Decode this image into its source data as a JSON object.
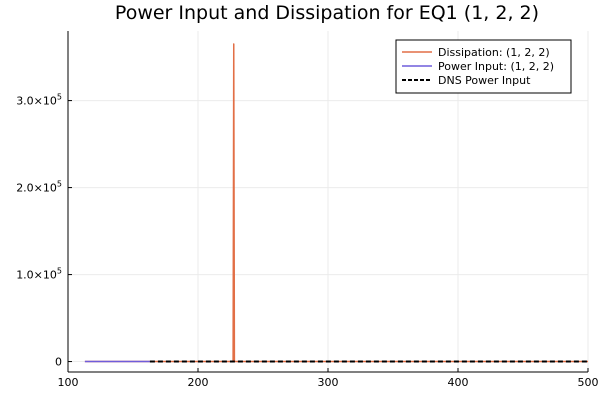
{
  "chart_data": {
    "type": "line",
    "title": "Power Input and Dissipation for EQ1 (1, 2, 2)",
    "xlabel": "",
    "ylabel": "",
    "xlim": [
      100,
      500
    ],
    "ylim": [
      -12000,
      380000
    ],
    "grid": true,
    "legend_position": "top-right",
    "x_ticks": [
      {
        "value": 100,
        "label": "100"
      },
      {
        "value": 200,
        "label": "200"
      },
      {
        "value": 300,
        "label": "300"
      },
      {
        "value": 400,
        "label": "400"
      },
      {
        "value": 500,
        "label": "500"
      }
    ],
    "y_ticks": [
      {
        "value": 0,
        "mantissa": "0",
        "exp": ""
      },
      {
        "value": 100000,
        "mantissa": "1.0×10",
        "exp": "5"
      },
      {
        "value": 200000,
        "mantissa": "2.0×10",
        "exp": "5"
      },
      {
        "value": 300000,
        "mantissa": "3.0×10",
        "exp": "5"
      }
    ],
    "series": [
      {
        "name": "Dissipation: (1, 2, 2)",
        "color": "#e26f46",
        "style": "solid",
        "points": [
          [
            113,
            0
          ],
          [
            227,
            0
          ],
          [
            227.5,
            365000
          ],
          [
            228,
            0
          ],
          [
            500,
            0
          ]
        ]
      },
      {
        "name": "Power Input: (1, 2, 2)",
        "color": "#6f5ddb",
        "style": "solid",
        "points": [
          [
            113,
            0
          ],
          [
            163,
            0
          ]
        ]
      },
      {
        "name": "DNS Power Input",
        "color": "#000000",
        "style": "dashed",
        "points": [
          [
            163,
            0
          ],
          [
            500,
            0
          ]
        ]
      }
    ]
  }
}
